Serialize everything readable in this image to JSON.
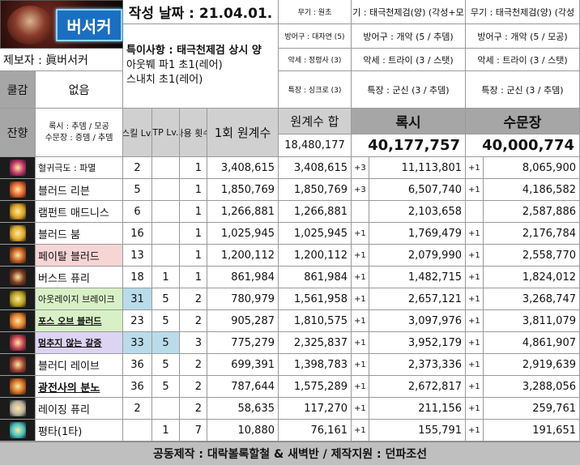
{
  "header": {
    "banner_label": "버서커",
    "date_label": "작성 날짜 : 21.04.01.",
    "reporter": "제보자 : 眞버서커",
    "notes_title": "특이사항 : 태극천제검 상시 양",
    "notes_line2": "아웃붸 파1 초1(레어)",
    "notes_line3": "스내치 초1(레어)",
    "col_label_left": "쿨감",
    "col_value_left": "없음",
    "residual_label": "잔향",
    "residual_line1": "록시 : 추뎀 / 모공",
    "residual_line2": "수문장 : 증뎀 / 추뎀"
  },
  "equip_base": [
    "무기 : 원초",
    "방어구 : 대자연 (5)",
    "악세 : 정령사 (3)",
    "특장 : 싱크로 (3)"
  ],
  "equip_roxy": [
    "기 : 태극천제검(양) (각성+모",
    "방어구 : 개악 (5 / 추뎀)",
    "악세 : 트라이 (3 / 스탯)",
    "특장 : 군신 (3 / 추뎀)"
  ],
  "equip_gate": [
    "무기 : 태극천제검(양) (각성",
    "방어구 : 개악 (5 / 모공)",
    "악세 : 트라이 (3 / 스탯)",
    "특장 : 군신 (3 / 추뎀)"
  ],
  "columns": {
    "skill_lv": "스킬 Lv.",
    "tp_lv": "TP Lv.",
    "uses": "사용 횟수",
    "base_once": "1회 원계수",
    "base_sum": "원계수 합",
    "roxy": "록시",
    "gate": "수문장"
  },
  "totals": {
    "base_sum": "18,480,177",
    "roxy": "40,177,757",
    "gate": "40,000,774"
  },
  "rows": [
    {
      "name": "혈귀극도 : 파멸",
      "lv": "2",
      "tp": "",
      "uses": "1",
      "once": "3,408,615",
      "sum": "3,408,615",
      "rp": "+3",
      "roxy": "11,113,801",
      "gp": "+1",
      "gate": "8,065,900"
    },
    {
      "name": "블러드 리븐",
      "lv": "5",
      "tp": "",
      "uses": "1",
      "once": "1,850,769",
      "sum": "1,850,769",
      "rp": "+3",
      "roxy": "6,507,740",
      "gp": "+1",
      "gate": "4,186,582"
    },
    {
      "name": "램펀트 매드니스",
      "lv": "6",
      "tp": "",
      "uses": "1",
      "once": "1,266,881",
      "sum": "1,266,881",
      "rp": "",
      "roxy": "2,103,658",
      "gp": "",
      "gate": "2,587,886"
    },
    {
      "name": "블러드 붐",
      "lv": "16",
      "tp": "",
      "uses": "1",
      "once": "1,025,945",
      "sum": "1,025,945",
      "rp": "+1",
      "roxy": "1,769,479",
      "gp": "+1",
      "gate": "2,176,784"
    },
    {
      "name": "페이탈 블러드",
      "lv": "13",
      "tp": "",
      "uses": "1",
      "once": "1,200,112",
      "sum": "1,200,112",
      "rp": "+1",
      "roxy": "2,079,990",
      "gp": "+1",
      "gate": "2,558,770"
    },
    {
      "name": "버스트 퓨리",
      "lv": "18",
      "tp": "1",
      "uses": "1",
      "once": "861,984",
      "sum": "861,984",
      "rp": "+1",
      "roxy": "1,482,715",
      "gp": "+1",
      "gate": "1,824,012"
    },
    {
      "name": "아웃레이지 브레이크",
      "lv": "31",
      "tp": "5",
      "uses": "2",
      "once": "780,979",
      "sum": "1,561,958",
      "rp": "+1",
      "roxy": "2,657,121",
      "gp": "+1",
      "gate": "3,268,747"
    },
    {
      "name": "포스 오브 블러드",
      "lv": "23",
      "tp": "5",
      "uses": "2",
      "once": "905,287",
      "sum": "1,810,575",
      "rp": "+1",
      "roxy": "3,097,976",
      "gp": "+1",
      "gate": "3,811,079"
    },
    {
      "name": "멈추지 않는 갈증",
      "lv": "33",
      "tp": "5",
      "uses": "3",
      "once": "775,279",
      "sum": "2,325,837",
      "rp": "+1",
      "roxy": "3,952,179",
      "gp": "+1",
      "gate": "4,861,907"
    },
    {
      "name": "블러디 레이브",
      "lv": "36",
      "tp": "5",
      "uses": "2",
      "once": "699,391",
      "sum": "1,398,783",
      "rp": "+1",
      "roxy": "2,373,336",
      "gp": "+1",
      "gate": "2,919,639"
    },
    {
      "name": "광전사의 분노",
      "lv": "36",
      "tp": "5",
      "uses": "2",
      "once": "787,644",
      "sum": "1,575,289",
      "rp": "+1",
      "roxy": "2,672,817",
      "gp": "+1",
      "gate": "3,288,056"
    },
    {
      "name": "레이징 퓨리",
      "lv": "2",
      "tp": "",
      "uses": "2",
      "once": "58,635",
      "sum": "117,270",
      "rp": "+1",
      "roxy": "211,156",
      "gp": "+1",
      "gate": "259,761"
    },
    {
      "name": "평타(1타)",
      "lv": "",
      "tp": "1",
      "uses": "7",
      "once": "10,880",
      "sum": "76,161",
      "rp": "+1",
      "roxy": "155,791",
      "gp": "+1",
      "gate": "191,651"
    }
  ],
  "row_styles": {
    "name_bg": [
      "#ffffff",
      "#ffffff",
      "#ffffff",
      "#ffffff",
      "#f6d5d5",
      "#ffffff",
      "#d8f0c6",
      "#d8f0c6",
      "#ddd4f3",
      "#ffffff",
      "#ffffff",
      "#ffffff",
      "#ffffff"
    ],
    "lv_bg": [
      "#ffffff",
      "#ffffff",
      "#ffffff",
      "#ffffff",
      "#ffffff",
      "#ffffff",
      "#b9dbea",
      "#ffffff",
      "#b9dbea",
      "#ffffff",
      "#ffffff",
      "#ffffff",
      "#ffffff"
    ],
    "tp_bg": [
      "#ffffff",
      "#ffffff",
      "#ffffff",
      "#ffffff",
      "#ffffff",
      "#ffffff",
      "#ffffff",
      "#ffffff",
      "#b9dbea",
      "#ffffff",
      "#ffffff",
      "#ffffff",
      "#ffffff"
    ],
    "underline": [
      false,
      false,
      false,
      false,
      false,
      false,
      false,
      true,
      true,
      false,
      true,
      false,
      false
    ],
    "bold": [
      false,
      false,
      false,
      false,
      false,
      false,
      false,
      true,
      true,
      false,
      true,
      false,
      false
    ]
  },
  "icon_colors": [
    "#c0306a",
    "#e0602a",
    "#d9a020",
    "#e0a828",
    "#c05a20",
    "#7a3a20",
    "#b8a020",
    "#e07a2a",
    "#c03a50",
    "#a04030",
    "#d06a20",
    "#b8b0a0",
    "#40c0c0"
  ],
  "footer": "공동제작 : 대락볼록할철 & 새벽반 / 제작지원 : 던파조선"
}
